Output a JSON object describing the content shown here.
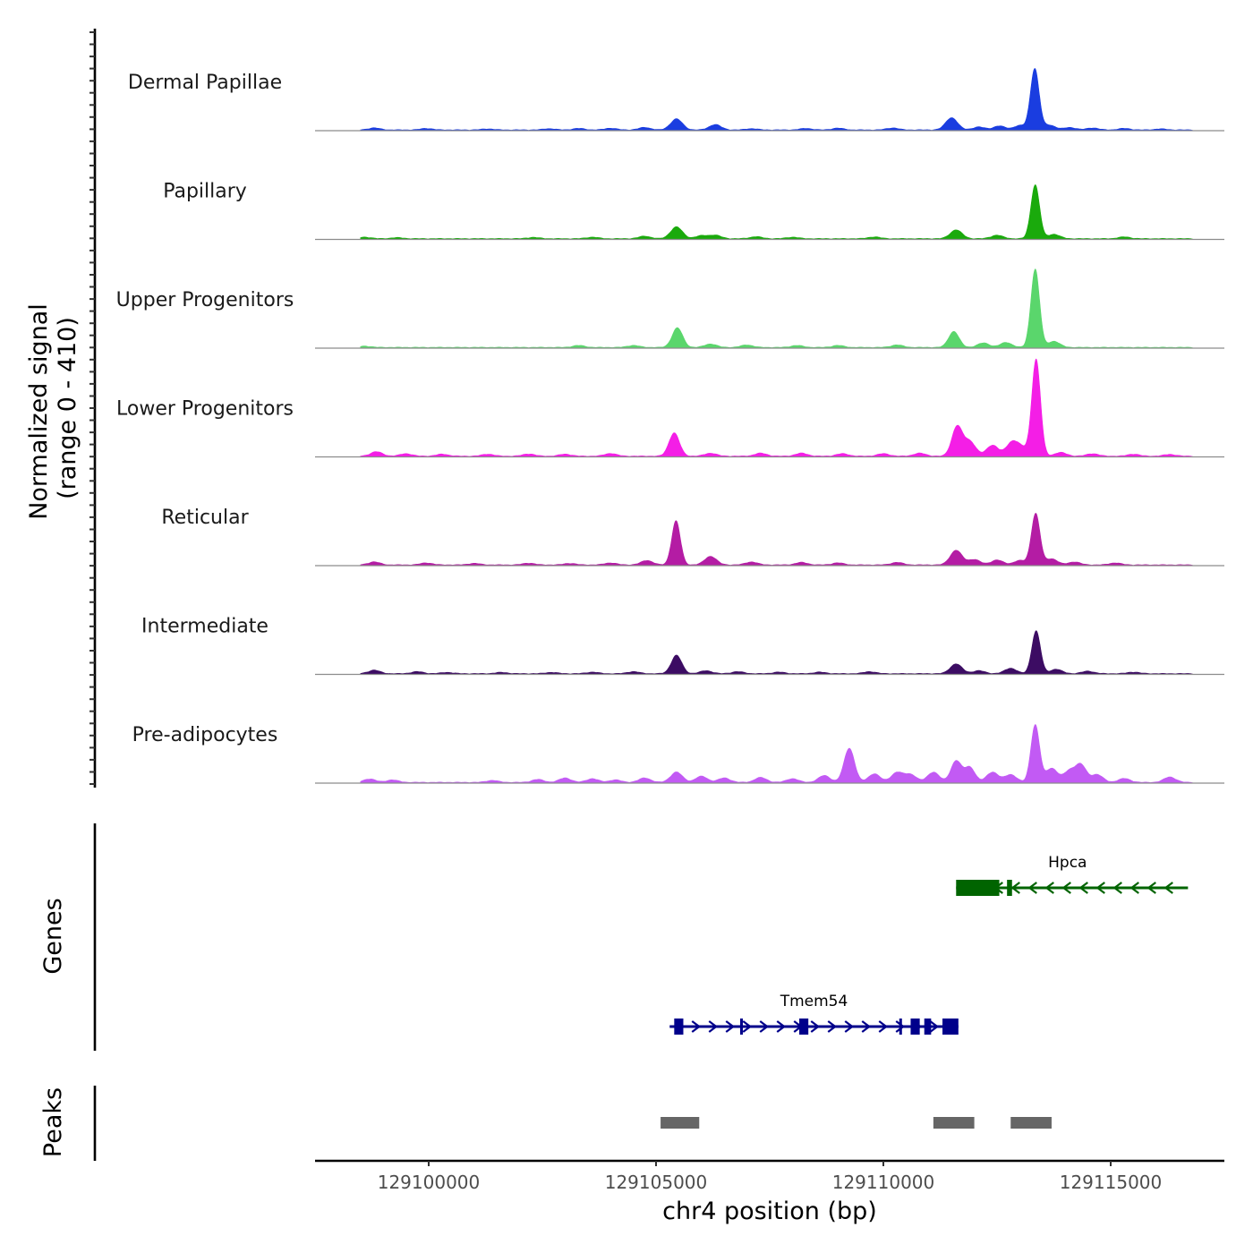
{
  "chart_data": {
    "type": "area",
    "title": "",
    "xlabel": "chr4 position (bp)",
    "ylabel": [
      "Normalized signal",
      "(range 0 - 410)"
    ],
    "y_range": [
      0,
      410
    ],
    "xlim": [
      129097500,
      129117500
    ],
    "x_ticks": [
      129100000,
      129105000,
      129110000,
      129115000
    ],
    "x_tick_labels": [
      "129100000",
      "129105000",
      "129110000",
      "129115000"
    ],
    "coverage_tracks": [
      {
        "name": "Dermal Papillae",
        "color": "#1a3de0",
        "peaks": [
          [
            98800,
            8
          ],
          [
            99950,
            6
          ],
          [
            101300,
            4
          ],
          [
            102650,
            5
          ],
          [
            103300,
            6
          ],
          [
            104000,
            7
          ],
          [
            104750,
            10
          ],
          [
            105450,
            45
          ],
          [
            106300,
            22
          ],
          [
            107100,
            5
          ],
          [
            108300,
            6
          ],
          [
            109000,
            7
          ],
          [
            110200,
            8
          ],
          [
            111500,
            50
          ],
          [
            112100,
            12
          ],
          [
            112550,
            16
          ],
          [
            113000,
            18
          ],
          [
            113330,
            250
          ],
          [
            113650,
            20
          ],
          [
            114100,
            10
          ],
          [
            114600,
            8
          ],
          [
            115300,
            6
          ],
          [
            116100,
            4
          ]
        ]
      },
      {
        "name": "Papillary",
        "color": "#1aaa0c",
        "peaks": [
          [
            98600,
            6
          ],
          [
            99300,
            4
          ],
          [
            102300,
            5
          ],
          [
            103600,
            6
          ],
          [
            104750,
            10
          ],
          [
            105450,
            48
          ],
          [
            106000,
            12
          ],
          [
            106300,
            14
          ],
          [
            107200,
            8
          ],
          [
            108000,
            6
          ],
          [
            109800,
            7
          ],
          [
            111600,
            36
          ],
          [
            112500,
            14
          ],
          [
            113340,
            220
          ],
          [
            113750,
            18
          ],
          [
            115300,
            7
          ]
        ]
      },
      {
        "name": "Upper Progenitors",
        "color": "#5ad66c",
        "peaks": [
          [
            98600,
            5
          ],
          [
            103300,
            8
          ],
          [
            104500,
            8
          ],
          [
            105470,
            80
          ],
          [
            106200,
            14
          ],
          [
            107000,
            10
          ],
          [
            108100,
            8
          ],
          [
            109000,
            8
          ],
          [
            110300,
            10
          ],
          [
            111550,
            65
          ],
          [
            112200,
            18
          ],
          [
            112700,
            20
          ],
          [
            113340,
            320
          ],
          [
            113750,
            25
          ]
        ]
      },
      {
        "name": "Lower Progenitors",
        "color": "#f41ee6",
        "peaks": [
          [
            98850,
            18
          ],
          [
            99500,
            10
          ],
          [
            100300,
            8
          ],
          [
            101300,
            8
          ],
          [
            102200,
            9
          ],
          [
            103000,
            8
          ],
          [
            104000,
            11
          ],
          [
            105400,
            95
          ],
          [
            106200,
            12
          ],
          [
            107300,
            12
          ],
          [
            108200,
            12
          ],
          [
            109100,
            10
          ],
          [
            110000,
            10
          ],
          [
            110800,
            12
          ],
          [
            111620,
            120
          ],
          [
            111900,
            60
          ],
          [
            112400,
            45
          ],
          [
            112830,
            55
          ],
          [
            113050,
            30
          ],
          [
            113360,
            395
          ],
          [
            113900,
            15
          ],
          [
            114600,
            10
          ],
          [
            115500,
            8
          ],
          [
            116300,
            7
          ]
        ]
      },
      {
        "name": "Reticular",
        "color": "#b41ca4",
        "peaks": [
          [
            98800,
            12
          ],
          [
            99950,
            8
          ],
          [
            101000,
            6
          ],
          [
            102200,
            7
          ],
          [
            103100,
            6
          ],
          [
            104000,
            8
          ],
          [
            104800,
            18
          ],
          [
            105440,
            180
          ],
          [
            106200,
            35
          ],
          [
            107100,
            12
          ],
          [
            108200,
            10
          ],
          [
            109000,
            8
          ],
          [
            110300,
            10
          ],
          [
            111600,
            60
          ],
          [
            112000,
            22
          ],
          [
            112500,
            20
          ],
          [
            113000,
            18
          ],
          [
            113350,
            210
          ],
          [
            113700,
            25
          ],
          [
            114200,
            12
          ],
          [
            115100,
            8
          ]
        ]
      },
      {
        "name": "Intermediate",
        "color": "#3c0c63",
        "peaks": [
          [
            98800,
            14
          ],
          [
            99750,
            8
          ],
          [
            100400,
            5
          ],
          [
            101600,
            5
          ],
          [
            102700,
            5
          ],
          [
            103600,
            6
          ],
          [
            104500,
            8
          ],
          [
            105450,
            75
          ],
          [
            106100,
            12
          ],
          [
            106800,
            8
          ],
          [
            107700,
            6
          ],
          [
            108600,
            6
          ],
          [
            109700,
            8
          ],
          [
            111600,
            40
          ],
          [
            112100,
            12
          ],
          [
            112800,
            22
          ],
          [
            113360,
            175
          ],
          [
            113800,
            18
          ],
          [
            114500,
            10
          ],
          [
            115500,
            6
          ]
        ]
      },
      {
        "name": "Pre-adipocytes",
        "color": "#c25af4",
        "peaks": [
          [
            98700,
            14
          ],
          [
            99200,
            10
          ],
          [
            101400,
            8
          ],
          [
            102400,
            12
          ],
          [
            103000,
            18
          ],
          [
            103600,
            15
          ],
          [
            104100,
            10
          ],
          [
            104750,
            18
          ],
          [
            105450,
            42
          ],
          [
            106000,
            25
          ],
          [
            106500,
            18
          ],
          [
            107300,
            20
          ],
          [
            108000,
            15
          ],
          [
            108700,
            28
          ],
          [
            109250,
            140
          ],
          [
            109800,
            35
          ],
          [
            110300,
            40
          ],
          [
            110600,
            32
          ],
          [
            111100,
            42
          ],
          [
            111600,
            88
          ],
          [
            111900,
            62
          ],
          [
            112400,
            42
          ],
          [
            112800,
            32
          ],
          [
            113340,
            235
          ],
          [
            113700,
            58
          ],
          [
            114100,
            48
          ],
          [
            114350,
            68
          ],
          [
            114700,
            32
          ],
          [
            115300,
            16
          ],
          [
            116300,
            22
          ]
        ]
      }
    ],
    "genes": [
      {
        "name": "Hpca",
        "strand": "-",
        "color": "#006400",
        "start": 129111600,
        "end": 129116700,
        "exons": [
          [
            129111600,
            129112550
          ],
          [
            129112720,
            129112830
          ]
        ]
      },
      {
        "name": "Tmem54",
        "strand": "+",
        "color": "#00008b",
        "start": 129105300,
        "end": 129111650,
        "exons": [
          [
            129105400,
            129105600
          ],
          [
            129106850,
            129106900
          ],
          [
            129108150,
            129108350
          ],
          [
            129110350,
            129110400
          ],
          [
            129110600,
            129110800
          ],
          [
            129110900,
            129111050
          ],
          [
            129111300,
            129111650
          ]
        ]
      }
    ],
    "peaks": [
      [
        129105100,
        129105950
      ],
      [
        129111100,
        129112000
      ],
      [
        129112800,
        129113700
      ]
    ],
    "track_labels": {
      "genes": "Genes",
      "peaks": "Peaks"
    }
  }
}
